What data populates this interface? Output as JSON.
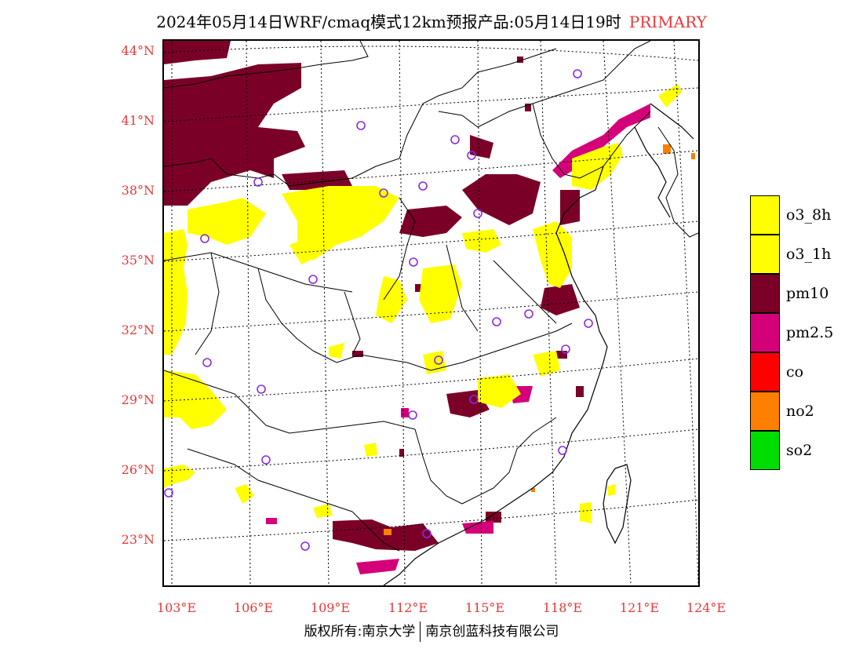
{
  "title": {
    "main": "2024年05月14日WRF/cmaq模式12km预报产品:05月14日19时",
    "tag": "PRIMARY"
  },
  "lat_labels": [
    "44°N",
    "41°N",
    "38°N",
    "35°N",
    "32°N",
    "29°N",
    "26°N",
    "23°N"
  ],
  "lon_labels": [
    "103°E",
    "106°E",
    "109°E",
    "112°E",
    "115°E",
    "118°E",
    "121°E",
    "124°E"
  ],
  "legend": [
    {
      "label": "o3_8h",
      "color": "#ffff00"
    },
    {
      "label": "o3_1h",
      "color": "#ffff00"
    },
    {
      "label": "pm10",
      "color": "#7b0028"
    },
    {
      "label": "pm2.5",
      "color": "#d4007a"
    },
    {
      "label": "co",
      "color": "#ff0000"
    },
    {
      "label": "no2",
      "color": "#ff7f00"
    },
    {
      "label": "so2",
      "color": "#00dd00"
    }
  ],
  "copyright": {
    "left": "版权所有:南京大学",
    "right": "南京创蓝科技有限公司"
  }
}
